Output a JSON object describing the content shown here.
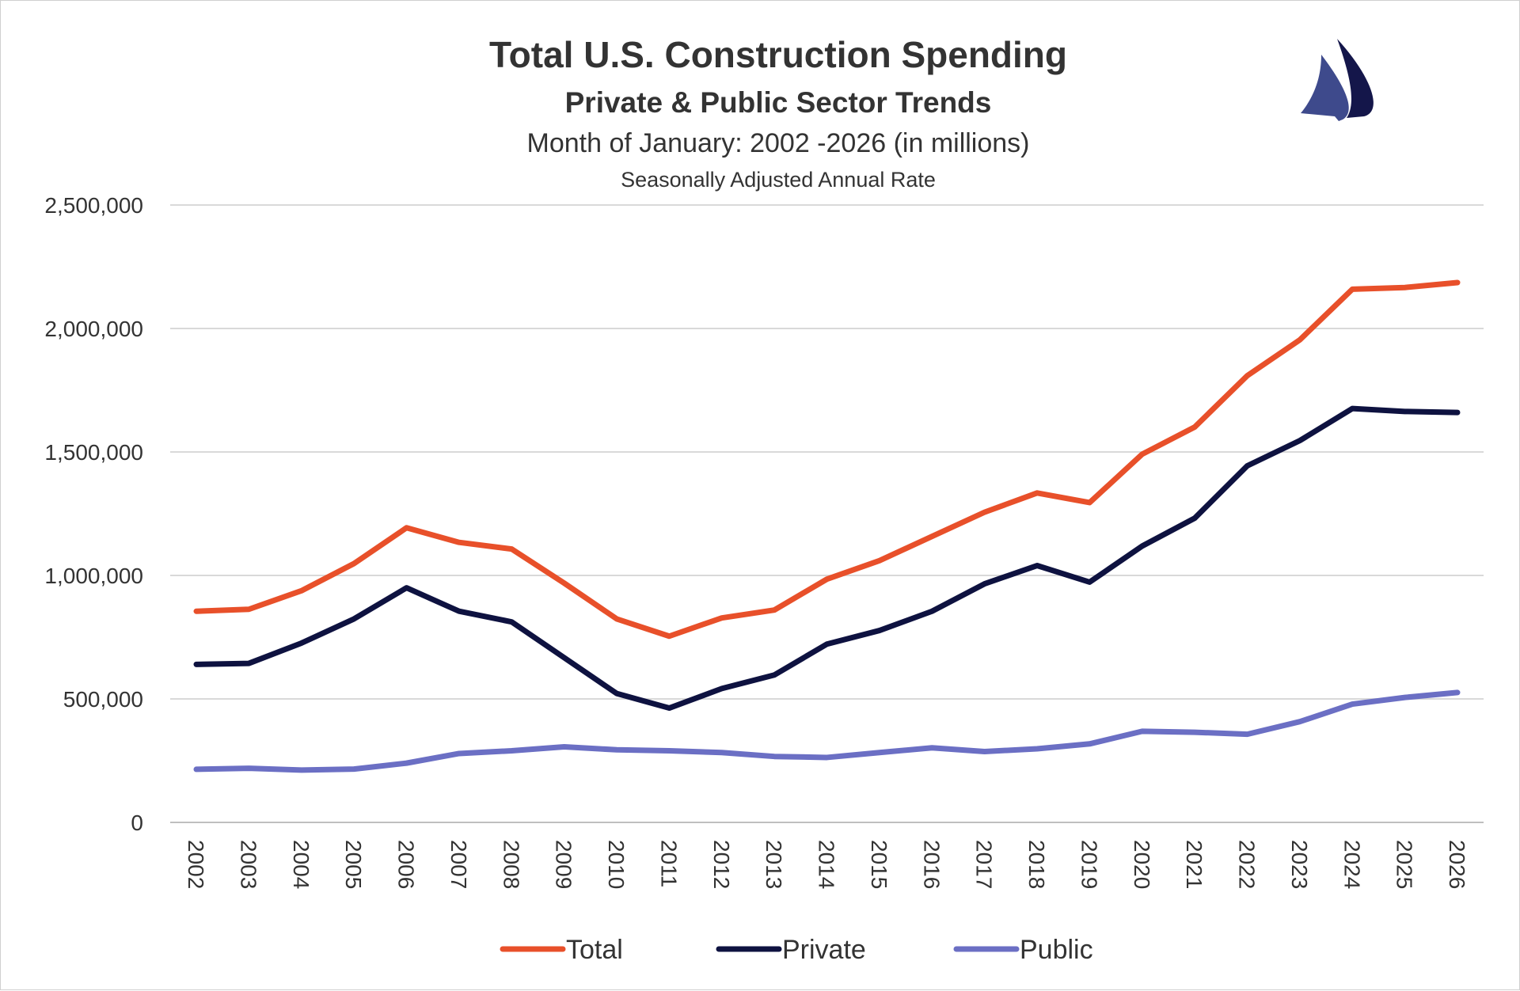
{
  "chart_data": {
    "type": "line",
    "title": "Total U.S. Construction Spending",
    "subtitle": "Private & Public Sector Trends",
    "subtitle2": "Month of January: 2002 -2026 (in millions)",
    "subtitle3": "Seasonally Adjusted Annual Rate",
    "xlabel": "",
    "ylabel": "",
    "ylim": [
      0,
      2500000
    ],
    "yticks": [
      "0",
      "500,000",
      "1,000,000",
      "1,500,000",
      "2,000,000",
      "2,500,000"
    ],
    "grid": true,
    "legend_position": "bottom",
    "categories": [
      "2002",
      "2003",
      "2004",
      "2005",
      "2006",
      "2007",
      "2008",
      "2009",
      "2010",
      "2011",
      "2012",
      "2013",
      "2014",
      "2015",
      "2016",
      "2017",
      "2018",
      "2019",
      "2020",
      "2021",
      "2022",
      "2023",
      "2024",
      "2025",
      "2026"
    ],
    "series": [
      {
        "name": "Total",
        "color": "#E8502A",
        "values": [
          855000,
          863000,
          938000,
          1048000,
          1193000,
          1134000,
          1107000,
          969000,
          824000,
          754000,
          828000,
          860000,
          985000,
          1060000,
          1158000,
          1256000,
          1334000,
          1295000,
          1491000,
          1601000,
          1809000,
          1954000,
          2159000,
          2166000,
          2186000
        ]
      },
      {
        "name": "Private",
        "color": "#0E1240",
        "values": [
          640000,
          644000,
          726000,
          824000,
          950000,
          855000,
          812000,
          667000,
          522000,
          463000,
          542000,
          597000,
          722000,
          777000,
          855000,
          966000,
          1040000,
          973000,
          1119000,
          1232000,
          1444000,
          1546000,
          1676000,
          1664000,
          1660000
        ]
      },
      {
        "name": "Public",
        "color": "#6B6FC4",
        "values": [
          215000,
          219000,
          212000,
          216000,
          240000,
          279000,
          290000,
          306000,
          294000,
          290000,
          283000,
          267000,
          263000,
          283000,
          302000,
          287000,
          298000,
          318000,
          369000,
          365000,
          357000,
          408000,
          479000,
          506000,
          526000
        ]
      }
    ]
  },
  "logo": {
    "icon": "sailboat-logo",
    "colors": [
      "#3E4A8C",
      "#14164A"
    ]
  }
}
